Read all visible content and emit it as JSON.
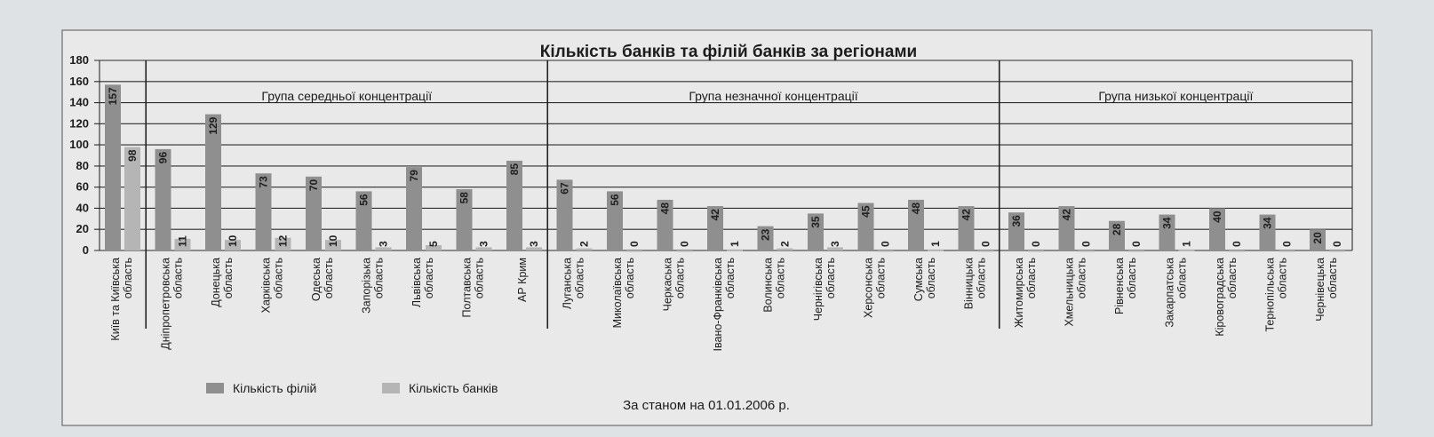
{
  "chart_data": {
    "type": "bar",
    "title": "Кількість банків та філій банків за регіонами",
    "footnote": "За станом на 01.01.2006 р.",
    "ylim": [
      0,
      180
    ],
    "yticks": [
      "0",
      "20",
      "40",
      "60",
      "80",
      "100",
      "120",
      "140",
      "160",
      "180"
    ],
    "grid": true,
    "legend_position": "bottom-left",
    "colors": {
      "filii": "#8f8f8f",
      "banky": "#b5b5b5"
    },
    "groups": [
      {
        "label": "Група середньої концентрації",
        "start": 1,
        "end": 8
      },
      {
        "label": "Група незначної концентрації",
        "start": 9,
        "end": 17
      },
      {
        "label": "Група низької концентрації",
        "start": 18,
        "end": 24
      }
    ],
    "categories": [
      [
        "Київ та Київська",
        "область"
      ],
      [
        "Дніпропетровська",
        "область"
      ],
      [
        "Донецька",
        "область"
      ],
      [
        "Харківська",
        "область"
      ],
      [
        "Одеська",
        "область"
      ],
      [
        "Запорізька",
        "область"
      ],
      [
        "Львівська",
        "область"
      ],
      [
        "Полтавська",
        "область"
      ],
      [
        "АР Крим"
      ],
      [
        "Луганська",
        "область"
      ],
      [
        "Миколаївська",
        "область"
      ],
      [
        "Черкаська",
        "область"
      ],
      [
        "Івано-Франківська",
        "область"
      ],
      [
        "Волинська",
        "область"
      ],
      [
        "Чернігівська",
        "область"
      ],
      [
        "Херсонська",
        "область"
      ],
      [
        "Сумська",
        "область"
      ],
      [
        "Вінницька",
        "область"
      ],
      [
        "Житомирська",
        "область"
      ],
      [
        "Хмельницька",
        "область"
      ],
      [
        "Рівненська",
        "область"
      ],
      [
        "Закарпатська",
        "область"
      ],
      [
        "Кіровоградська",
        "область"
      ],
      [
        "Тернопільська",
        "область"
      ],
      [
        "Чернівецька",
        "область"
      ]
    ],
    "series": [
      {
        "name": "Кількість філій",
        "values": [
          157,
          96,
          129,
          73,
          70,
          56,
          79,
          58,
          85,
          67,
          56,
          48,
          42,
          23,
          35,
          45,
          48,
          42,
          36,
          42,
          28,
          34,
          40,
          34,
          20
        ]
      },
      {
        "name": "Кількість банків",
        "values": [
          98,
          11,
          10,
          12,
          10,
          3,
          5,
          3,
          3,
          2,
          0,
          0,
          1,
          2,
          3,
          0,
          1,
          0,
          0,
          0,
          0,
          1,
          0,
          0,
          0
        ]
      }
    ]
  }
}
